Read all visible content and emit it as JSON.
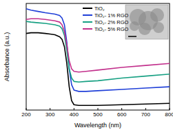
{
  "chart_data": {
    "type": "line",
    "x_label": "Wavelength (nm)",
    "y_label": "Absorbance (a.u.)",
    "x": [
      200,
      220,
      250,
      280,
      300,
      320,
      340,
      350,
      360,
      370,
      380,
      390,
      400,
      420,
      450,
      500,
      600,
      700,
      800
    ],
    "series": [
      {
        "name": "TiO₂",
        "color": "#000000",
        "values": [
          1.15,
          1.16,
          1.16,
          1.15,
          1.14,
          1.13,
          1.1,
          1.06,
          0.95,
          0.7,
          0.35,
          0.14,
          0.08,
          0.07,
          0.07,
          0.07,
          0.08,
          0.09,
          0.1
        ]
      },
      {
        "name": "TiO₂- 1% RGO",
        "color": "#1f3fd8",
        "values": [
          1.52,
          1.5,
          1.48,
          1.46,
          1.45,
          1.44,
          1.42,
          1.38,
          1.28,
          1.02,
          0.62,
          0.38,
          0.3,
          0.28,
          0.28,
          0.29,
          0.31,
          0.33,
          0.35
        ]
      },
      {
        "name": "TiO₂- 2% RGO",
        "color": "#17a083",
        "values": [
          1.33,
          1.32,
          1.31,
          1.3,
          1.29,
          1.28,
          1.26,
          1.22,
          1.12,
          0.9,
          0.62,
          0.48,
          0.43,
          0.42,
          0.43,
          0.44,
          0.48,
          0.51,
          0.54
        ]
      },
      {
        "name": "TiO₂- 5% RGO",
        "color": "#c2308c",
        "values": [
          1.36,
          1.37,
          1.37,
          1.36,
          1.35,
          1.34,
          1.32,
          1.28,
          1.18,
          0.98,
          0.74,
          0.62,
          0.58,
          0.57,
          0.58,
          0.6,
          0.64,
          0.67,
          0.7
        ]
      }
    ],
    "xlim": [
      200,
      800
    ],
    "xticks": [
      200,
      300,
      400,
      500,
      600,
      700,
      800
    ],
    "ylim": [
      0,
      1.6
    ],
    "tick_labels": "x",
    "legend": "upper right"
  }
}
